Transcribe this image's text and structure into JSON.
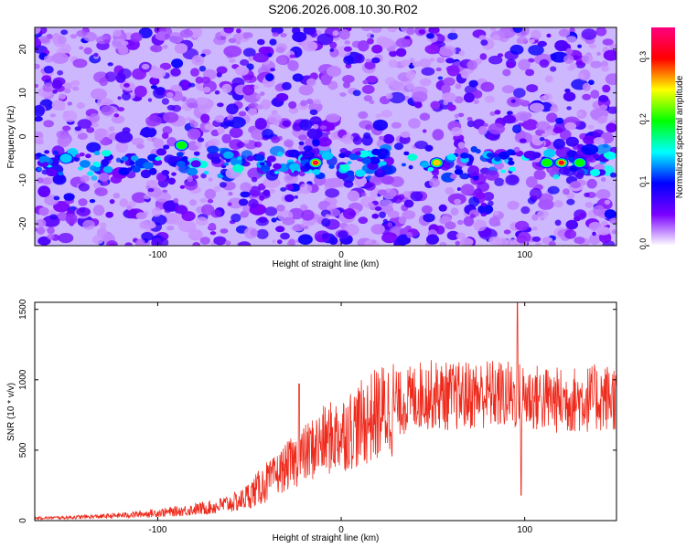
{
  "title": "S206.2026.008.10.30.R02",
  "chart_data": [
    {
      "type": "heatmap",
      "xlabel": "Height of straight line (km)",
      "ylabel": "Frequency (Hz)",
      "xlim": [
        -167,
        150
      ],
      "ylim": [
        -25,
        25
      ],
      "xticks": [
        -100,
        0,
        100
      ],
      "yticks": [
        -20,
        -10,
        0,
        10,
        20
      ],
      "colorbar": {
        "label": "Normalized spectral amplitude",
        "range": [
          0,
          0.35
        ],
        "ticks": [
          "0.0",
          "0.1",
          "0.2",
          "0.3"
        ],
        "colors": [
          "#ffffff",
          "#7a00ff",
          "#0000ff",
          "#00ffff",
          "#00ff00",
          "#ffff00",
          "#ff0000",
          "#ff0080"
        ]
      },
      "signal_band_hz": -6,
      "hotspots": [
        {
          "x": -87,
          "y": -2,
          "value": 0.25
        },
        {
          "x": -14,
          "y": -6,
          "value": 0.34
        },
        {
          "x": 52,
          "y": -6,
          "value": 0.28
        },
        {
          "x": 120,
          "y": -6,
          "value": 0.31
        },
        {
          "x": 112,
          "y": -6,
          "value": 0.2
        },
        {
          "x": -150,
          "y": -5,
          "value": 0.16
        },
        {
          "x": 130,
          "y": -6,
          "value": 0.22
        }
      ]
    },
    {
      "type": "line",
      "xlabel": "Height of straight line (km)",
      "ylabel": "SNR (10 * v/v)",
      "xlim": [
        -167,
        150
      ],
      "ylim": [
        0,
        1550
      ],
      "xticks": [
        -100,
        0,
        100
      ],
      "yticks": [
        0,
        500,
        1000,
        1500
      ],
      "color": "#ee2a1c",
      "series": [
        {
          "name": "SNR",
          "x": [
            -167,
            -150,
            -130,
            -110,
            -90,
            -70,
            -55,
            -45,
            -35,
            -28,
            -20,
            -10,
            0,
            10,
            20,
            30,
            45,
            60,
            80,
            100,
            120,
            140,
            150
          ],
          "values": [
            18,
            22,
            30,
            45,
            65,
            95,
            140,
            230,
            330,
            400,
            470,
            560,
            620,
            680,
            760,
            820,
            900,
            880,
            900,
            880,
            850,
            870,
            880
          ]
        }
      ],
      "annotations": [
        {
          "x": 96,
          "y": 1550
        },
        {
          "x": 98,
          "y": 180
        },
        {
          "x": -23,
          "y": 970
        }
      ]
    }
  ]
}
